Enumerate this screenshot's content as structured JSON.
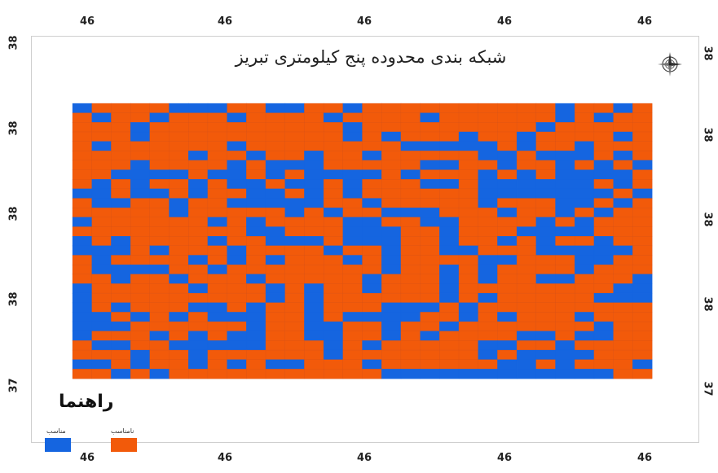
{
  "map": {
    "title": "شبکه بندی محدوده پنج کیلومتری تبریز",
    "colors": {
      "suitable": "#1565e0",
      "unsuitable": "#f25a0a",
      "gridline": "#d4521a"
    },
    "top_ticks": [
      "46",
      "46",
      "46",
      "46",
      "46"
    ],
    "bottom_ticks": [
      "46",
      "46",
      "46",
      "46",
      "46"
    ],
    "left_ticks": [
      "38",
      "38",
      "38",
      "38",
      "37"
    ],
    "right_ticks": [
      "38",
      "38",
      "38",
      "38",
      "37"
    ],
    "grid": {
      "rows": 29,
      "cols": 30,
      "suitable_cells": [
        [
          0,
          0
        ],
        [
          0,
          5
        ],
        [
          0,
          6
        ],
        [
          0,
          7
        ],
        [
          0,
          10
        ],
        [
          0,
          11
        ],
        [
          0,
          14
        ],
        [
          0,
          25
        ],
        [
          0,
          28
        ],
        [
          1,
          1
        ],
        [
          1,
          4
        ],
        [
          1,
          8
        ],
        [
          1,
          13
        ],
        [
          1,
          18
        ],
        [
          1,
          25
        ],
        [
          1,
          27
        ],
        [
          2,
          3
        ],
        [
          2,
          14
        ],
        [
          2,
          24
        ],
        [
          3,
          3
        ],
        [
          3,
          14
        ],
        [
          3,
          16
        ],
        [
          3,
          20
        ],
        [
          3,
          23
        ],
        [
          3,
          28
        ],
        [
          4,
          1
        ],
        [
          4,
          8
        ],
        [
          4,
          17
        ],
        [
          4,
          18
        ],
        [
          4,
          19
        ],
        [
          4,
          20
        ],
        [
          4,
          21
        ],
        [
          4,
          23
        ],
        [
          4,
          26
        ],
        [
          5,
          6
        ],
        [
          5,
          9
        ],
        [
          5,
          12
        ],
        [
          5,
          15
        ],
        [
          5,
          21
        ],
        [
          5,
          22
        ],
        [
          5,
          24
        ],
        [
          5,
          25
        ],
        [
          5,
          26
        ],
        [
          5,
          28
        ],
        [
          6,
          3
        ],
        [
          6,
          8
        ],
        [
          6,
          10
        ],
        [
          6,
          11
        ],
        [
          6,
          12
        ],
        [
          6,
          18
        ],
        [
          6,
          19
        ],
        [
          6,
          22
        ],
        [
          6,
          25
        ],
        [
          6,
          27
        ],
        [
          6,
          29
        ],
        [
          7,
          2
        ],
        [
          7,
          3
        ],
        [
          7,
          4
        ],
        [
          7,
          5
        ],
        [
          7,
          7
        ],
        [
          7,
          8
        ],
        [
          7,
          10
        ],
        [
          7,
          12
        ],
        [
          7,
          13
        ],
        [
          7,
          14
        ],
        [
          7,
          15
        ],
        [
          7,
          17
        ],
        [
          7,
          21
        ],
        [
          7,
          23
        ],
        [
          7,
          25
        ],
        [
          7,
          26
        ],
        [
          7,
          27
        ],
        [
          7,
          28
        ],
        [
          8,
          1
        ],
        [
          8,
          3
        ],
        [
          8,
          6
        ],
        [
          8,
          8
        ],
        [
          8,
          9
        ],
        [
          8,
          11
        ],
        [
          8,
          12
        ],
        [
          8,
          14
        ],
        [
          8,
          18
        ],
        [
          8,
          19
        ],
        [
          8,
          21
        ],
        [
          8,
          22
        ],
        [
          8,
          23
        ],
        [
          8,
          24
        ],
        [
          8,
          25
        ],
        [
          8,
          26
        ],
        [
          8,
          28
        ],
        [
          9,
          0
        ],
        [
          9,
          1
        ],
        [
          9,
          3
        ],
        [
          9,
          4
        ],
        [
          9,
          6
        ],
        [
          9,
          9
        ],
        [
          9,
          10
        ],
        [
          9,
          12
        ],
        [
          9,
          14
        ],
        [
          9,
          21
        ],
        [
          9,
          22
        ],
        [
          9,
          23
        ],
        [
          9,
          24
        ],
        [
          9,
          25
        ],
        [
          9,
          26
        ],
        [
          9,
          27
        ],
        [
          9,
          29
        ],
        [
          10,
          1
        ],
        [
          10,
          2
        ],
        [
          10,
          5
        ],
        [
          10,
          8
        ],
        [
          10,
          9
        ],
        [
          10,
          10
        ],
        [
          10,
          11
        ],
        [
          10,
          12
        ],
        [
          10,
          15
        ],
        [
          10,
          21
        ],
        [
          10,
          25
        ],
        [
          10,
          26
        ],
        [
          10,
          28
        ],
        [
          11,
          5
        ],
        [
          11,
          11
        ],
        [
          11,
          13
        ],
        [
          11,
          16
        ],
        [
          11,
          17
        ],
        [
          11,
          18
        ],
        [
          11,
          22
        ],
        [
          11,
          25
        ],
        [
          11,
          27
        ],
        [
          12,
          0
        ],
        [
          12,
          7
        ],
        [
          12,
          9
        ],
        [
          12,
          14
        ],
        [
          12,
          15
        ],
        [
          12,
          18
        ],
        [
          12,
          19
        ],
        [
          12,
          24
        ],
        [
          12,
          26
        ],
        [
          13,
          9
        ],
        [
          13,
          10
        ],
        [
          13,
          14
        ],
        [
          13,
          15
        ],
        [
          13,
          16
        ],
        [
          13,
          19
        ],
        [
          13,
          23
        ],
        [
          13,
          24
        ],
        [
          13,
          25
        ],
        [
          13,
          26
        ],
        [
          14,
          0
        ],
        [
          14,
          2
        ],
        [
          14,
          7
        ],
        [
          14,
          10
        ],
        [
          14,
          11
        ],
        [
          14,
          12
        ],
        [
          14,
          14
        ],
        [
          14,
          15
        ],
        [
          14,
          16
        ],
        [
          14,
          19
        ],
        [
          14,
          22
        ],
        [
          14,
          24
        ],
        [
          14,
          27
        ],
        [
          15,
          0
        ],
        [
          15,
          1
        ],
        [
          15,
          2
        ],
        [
          15,
          4
        ],
        [
          15,
          8
        ],
        [
          15,
          13
        ],
        [
          15,
          16
        ],
        [
          15,
          19
        ],
        [
          15,
          20
        ],
        [
          15,
          24
        ],
        [
          15,
          25
        ],
        [
          15,
          26
        ],
        [
          15,
          27
        ],
        [
          15,
          28
        ],
        [
          16,
          1
        ],
        [
          16,
          6
        ],
        [
          16,
          8
        ],
        [
          16,
          10
        ],
        [
          16,
          14
        ],
        [
          16,
          16
        ],
        [
          16,
          21
        ],
        [
          16,
          22
        ],
        [
          16,
          26
        ],
        [
          16,
          27
        ],
        [
          17,
          1
        ],
        [
          17,
          2
        ],
        [
          17,
          3
        ],
        [
          17,
          4
        ],
        [
          17,
          7
        ],
        [
          17,
          16
        ],
        [
          17,
          19
        ],
        [
          17,
          21
        ],
        [
          17,
          26
        ],
        [
          18,
          2
        ],
        [
          18,
          5
        ],
        [
          18,
          9
        ],
        [
          18,
          15
        ],
        [
          18,
          19
        ],
        [
          18,
          21
        ],
        [
          18,
          24
        ],
        [
          18,
          25
        ],
        [
          18,
          29
        ],
        [
          19,
          0
        ],
        [
          19,
          6
        ],
        [
          19,
          10
        ],
        [
          19,
          12
        ],
        [
          19,
          15
        ],
        [
          19,
          19
        ],
        [
          19,
          28
        ],
        [
          19,
          29
        ],
        [
          20,
          0
        ],
        [
          20,
          10
        ],
        [
          20,
          12
        ],
        [
          20,
          19
        ],
        [
          20,
          21
        ],
        [
          20,
          27
        ],
        [
          20,
          28
        ],
        [
          20,
          29
        ],
        [
          21,
          0
        ],
        [
          21,
          2
        ],
        [
          21,
          6
        ],
        [
          21,
          7
        ],
        [
          21,
          9
        ],
        [
          21,
          12
        ],
        [
          21,
          16
        ],
        [
          21,
          17
        ],
        [
          21,
          18
        ],
        [
          21,
          20
        ],
        [
          22,
          0
        ],
        [
          22,
          1
        ],
        [
          22,
          3
        ],
        [
          22,
          5
        ],
        [
          22,
          7
        ],
        [
          22,
          8
        ],
        [
          22,
          9
        ],
        [
          22,
          12
        ],
        [
          22,
          14
        ],
        [
          22,
          15
        ],
        [
          22,
          16
        ],
        [
          22,
          17
        ],
        [
          22,
          20
        ],
        [
          22,
          22
        ],
        [
          22,
          26
        ],
        [
          23,
          0
        ],
        [
          23,
          1
        ],
        [
          23,
          2
        ],
        [
          23,
          9
        ],
        [
          23,
          12
        ],
        [
          23,
          13
        ],
        [
          23,
          16
        ],
        [
          23,
          19
        ],
        [
          23,
          27
        ],
        [
          24,
          0
        ],
        [
          24,
          4
        ],
        [
          24,
          6
        ],
        [
          24,
          8
        ],
        [
          24,
          9
        ],
        [
          24,
          12
        ],
        [
          24,
          13
        ],
        [
          24,
          16
        ],
        [
          24,
          18
        ],
        [
          24,
          23
        ],
        [
          24,
          24
        ],
        [
          24,
          26
        ],
        [
          24,
          27
        ],
        [
          25,
          1
        ],
        [
          25,
          2
        ],
        [
          25,
          5
        ],
        [
          25,
          6
        ],
        [
          25,
          7
        ],
        [
          25,
          8
        ],
        [
          25,
          9
        ],
        [
          25,
          13
        ],
        [
          25,
          15
        ],
        [
          25,
          21
        ],
        [
          25,
          22
        ],
        [
          25,
          25
        ],
        [
          26,
          3
        ],
        [
          26,
          6
        ],
        [
          26,
          13
        ],
        [
          26,
          21
        ],
        [
          26,
          23
        ],
        [
          26,
          24
        ],
        [
          26,
          25
        ],
        [
          26,
          26
        ],
        [
          27,
          0
        ],
        [
          27,
          1
        ],
        [
          27,
          3
        ],
        [
          27,
          6
        ],
        [
          27,
          8
        ],
        [
          27,
          10
        ],
        [
          27,
          11
        ],
        [
          27,
          15
        ],
        [
          27,
          22
        ],
        [
          27,
          23
        ],
        [
          27,
          25
        ],
        [
          27,
          29
        ],
        [
          28,
          2
        ],
        [
          28,
          4
        ],
        [
          28,
          16
        ],
        [
          28,
          17
        ],
        [
          28,
          18
        ],
        [
          28,
          19
        ],
        [
          28,
          20
        ],
        [
          28,
          21
        ],
        [
          28,
          22
        ],
        [
          28,
          23
        ],
        [
          28,
          24
        ],
        [
          28,
          25
        ],
        [
          28,
          26
        ],
        [
          28,
          27
        ]
      ]
    }
  },
  "legend": {
    "title": "راهنما",
    "items": [
      {
        "label": "مناسب",
        "color": "#1565e0"
      },
      {
        "label": "نامناسب",
        "color": "#f25a0a"
      }
    ]
  }
}
